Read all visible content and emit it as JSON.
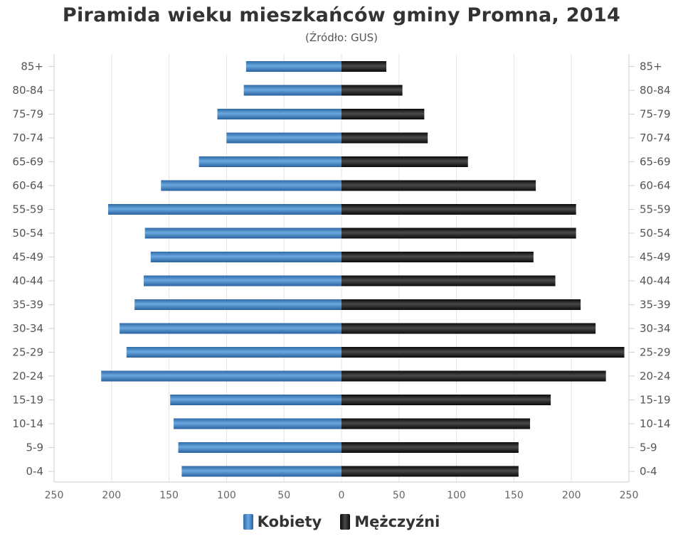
{
  "chart_data": {
    "type": "bar",
    "orientation": "horizontal",
    "title": "Piramida wieku mieszkańców gminy Promna, 2014",
    "subtitle": "(Źródło: GUS)",
    "categories": [
      "85+",
      "80-84",
      "75-79",
      "70-74",
      "65-69",
      "60-64",
      "55-59",
      "50-54",
      "45-49",
      "40-44",
      "35-39",
      "30-34",
      "25-29",
      "20-24",
      "15-19",
      "10-14",
      "5-9",
      "0-4"
    ],
    "series": [
      {
        "name": "Kobiety",
        "color": "#4a8ac9",
        "values": [
          83,
          85,
          108,
          100,
          124,
          157,
          203,
          171,
          166,
          172,
          180,
          193,
          187,
          209,
          149,
          146,
          142,
          139
        ]
      },
      {
        "name": "Mężczyźni",
        "color": "#1f1f1f",
        "values": [
          39,
          53,
          72,
          75,
          110,
          169,
          204,
          204,
          167,
          186,
          208,
          221,
          246,
          230,
          182,
          164,
          154,
          154
        ]
      }
    ],
    "x_ticks": [
      "250",
      "200",
      "150",
      "100",
      "50",
      "0",
      "50",
      "100",
      "150",
      "200",
      "250"
    ],
    "xlim": [
      -250,
      250
    ],
    "grid": true,
    "legend_position": "bottom"
  }
}
